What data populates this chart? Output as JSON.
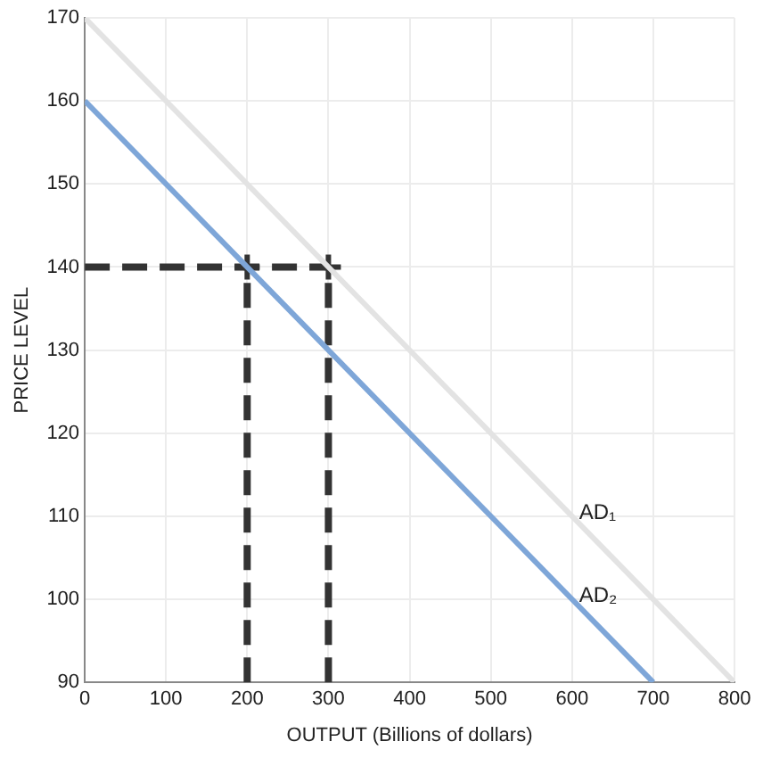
{
  "chart_data": {
    "type": "line",
    "xlabel": "OUTPUT (Billions of dollars)",
    "ylabel": "PRICE LEVEL",
    "xlim": [
      0,
      800
    ],
    "xticks": [
      0,
      100,
      200,
      300,
      400,
      500,
      600,
      700,
      800
    ],
    "ylim": [
      90,
      170
    ],
    "yticks": [
      90,
      100,
      110,
      120,
      130,
      140,
      150,
      160,
      170
    ],
    "grid": true,
    "legend": false,
    "series": [
      {
        "name": "AD₁",
        "color": "#e3e3e3",
        "x": [
          0,
          800
        ],
        "values": [
          170,
          90
        ]
      },
      {
        "name": "AD₂",
        "color": "#7ea6d8",
        "x": [
          0,
          700
        ],
        "values": [
          160,
          90
        ]
      },
      {
        "color": "#333333",
        "line_style": "dashed",
        "x": [
          0,
          300
        ],
        "values": [
          140,
          140
        ]
      },
      {
        "color": "#333333",
        "line_style": "dashed",
        "x": [
          200,
          200
        ],
        "values": [
          90,
          140
        ]
      },
      {
        "color": "#333333",
        "line_style": "dashed",
        "x": [
          300,
          300
        ],
        "values": [
          90,
          140
        ]
      },
      {
        "type": "scatter",
        "color": "#333333",
        "marker": "cross",
        "x": [
          200,
          300
        ],
        "values": [
          140,
          140
        ]
      }
    ]
  }
}
